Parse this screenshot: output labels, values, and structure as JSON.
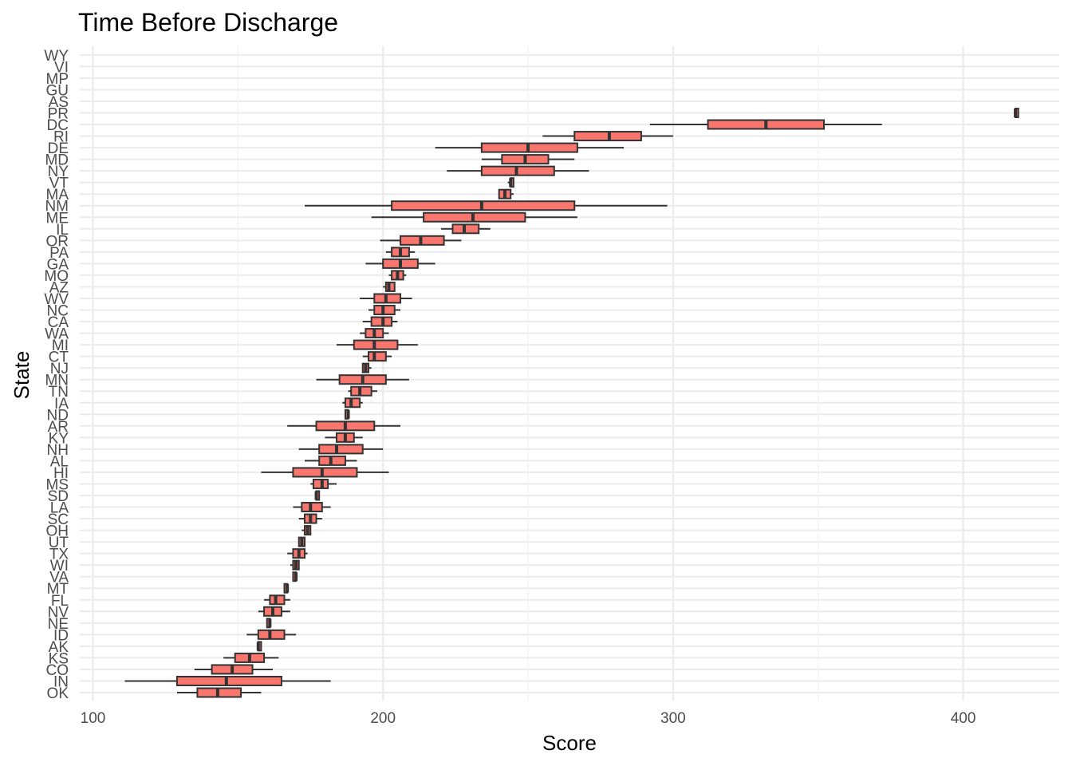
{
  "chart_data": {
    "type": "boxplot",
    "title": "Time Before Discharge",
    "xlabel": "Score",
    "ylabel": "State",
    "xlim": [
      96,
      431
    ],
    "x_ticks": [
      100,
      200,
      300,
      400
    ],
    "grid": true,
    "legend": "none",
    "colors": {
      "box_fill": "#F8766D",
      "outline": "#333333",
      "grid": "#EBEBEB",
      "text": "#4D4D4D",
      "title": "#000000"
    },
    "states": [
      "OK",
      "IN",
      "CO",
      "KS",
      "AK",
      "ID",
      "NE",
      "NV",
      "FL",
      "MT",
      "VA",
      "WI",
      "TX",
      "UT",
      "OH",
      "SC",
      "LA",
      "SD",
      "MS",
      "HI",
      "AL",
      "NH",
      "KY",
      "AR",
      "ND",
      "IA",
      "TN",
      "MN",
      "NJ",
      "CT",
      "MI",
      "WA",
      "CA",
      "NC",
      "WV",
      "AZ",
      "MO",
      "GA",
      "PA",
      "OR",
      "IL",
      "ME",
      "NM",
      "MA",
      "VT",
      "NY",
      "MD",
      "DE",
      "RI",
      "DC",
      "PR",
      "AS",
      "GU",
      "MP",
      "VI",
      "WY"
    ],
    "boxes": [
      {
        "state": "OK",
        "min": 129,
        "q1": 136,
        "median": 143,
        "q3": 151,
        "max": 158
      },
      {
        "state": "IN",
        "min": 111,
        "q1": 129,
        "median": 146,
        "q3": 165,
        "max": 182
      },
      {
        "state": "CO",
        "min": 135,
        "q1": 141,
        "median": 148,
        "q3": 155,
        "max": 162
      },
      {
        "state": "KS",
        "min": 145,
        "q1": 149,
        "median": 154,
        "q3": 159,
        "max": 164
      },
      {
        "state": "AK",
        "min": 157,
        "q1": 157,
        "median": 157,
        "q3": 158,
        "max": 158
      },
      {
        "state": "ID",
        "min": 153,
        "q1": 157,
        "median": 161,
        "q3": 166,
        "max": 170
      },
      {
        "state": "NE",
        "min": 160,
        "q1": 160,
        "median": 161,
        "q3": 161,
        "max": 161
      },
      {
        "state": "NV",
        "min": 157,
        "q1": 159,
        "median": 162,
        "q3": 165,
        "max": 168
      },
      {
        "state": "FL",
        "min": 159,
        "q1": 161,
        "median": 163,
        "q3": 166,
        "max": 168
      },
      {
        "state": "MT",
        "min": 166,
        "q1": 166,
        "median": 167,
        "q3": 167,
        "max": 167
      },
      {
        "state": "VA",
        "min": 169,
        "q1": 169,
        "median": 170,
        "q3": 170,
        "max": 170
      },
      {
        "state": "WI",
        "min": 168,
        "q1": 169,
        "median": 170,
        "q3": 171,
        "max": 171
      },
      {
        "state": "TX",
        "min": 167,
        "q1": 169,
        "median": 171,
        "q3": 173,
        "max": 174
      },
      {
        "state": "UT",
        "min": 171,
        "q1": 171,
        "median": 172,
        "q3": 173,
        "max": 173
      },
      {
        "state": "OH",
        "min": 172,
        "q1": 173,
        "median": 174,
        "q3": 175,
        "max": 175
      },
      {
        "state": "SC",
        "min": 171,
        "q1": 173,
        "median": 175,
        "q3": 177,
        "max": 179
      },
      {
        "state": "LA",
        "min": 169,
        "q1": 172,
        "median": 175,
        "q3": 179,
        "max": 182
      },
      {
        "state": "SD",
        "min": 177,
        "q1": 177,
        "median": 177,
        "q3": 178,
        "max": 178
      },
      {
        "state": "MS",
        "min": 175,
        "q1": 176,
        "median": 179,
        "q3": 181,
        "max": 184
      },
      {
        "state": "HI",
        "min": 158,
        "q1": 169,
        "median": 179,
        "q3": 191,
        "max": 202
      },
      {
        "state": "AL",
        "min": 173,
        "q1": 178,
        "median": 182,
        "q3": 187,
        "max": 191
      },
      {
        "state": "NH",
        "min": 171,
        "q1": 178,
        "median": 184,
        "q3": 193,
        "max": 200
      },
      {
        "state": "KY",
        "min": 180,
        "q1": 184,
        "median": 187,
        "q3": 190,
        "max": 193
      },
      {
        "state": "AR",
        "min": 167,
        "q1": 177,
        "median": 187,
        "q3": 197,
        "max": 206
      },
      {
        "state": "ND",
        "min": 187,
        "q1": 187,
        "median": 188,
        "q3": 188,
        "max": 188
      },
      {
        "state": "IA",
        "min": 186,
        "q1": 187,
        "median": 189,
        "q3": 192,
        "max": 193
      },
      {
        "state": "TN",
        "min": 188,
        "q1": 189,
        "median": 192,
        "q3": 196,
        "max": 198
      },
      {
        "state": "MN",
        "min": 177,
        "q1": 185,
        "median": 193,
        "q3": 201,
        "max": 209
      },
      {
        "state": "NJ",
        "min": 193,
        "q1": 193,
        "median": 194,
        "q3": 195,
        "max": 196
      },
      {
        "state": "CT",
        "min": 193,
        "q1": 195,
        "median": 197,
        "q3": 201,
        "max": 203
      },
      {
        "state": "MI",
        "min": 184,
        "q1": 190,
        "median": 197,
        "q3": 205,
        "max": 212
      },
      {
        "state": "WA",
        "min": 192,
        "q1": 194,
        "median": 197,
        "q3": 200,
        "max": 202
      },
      {
        "state": "CA",
        "min": 193,
        "q1": 196,
        "median": 200,
        "q3": 203,
        "max": 205
      },
      {
        "state": "NC",
        "min": 195,
        "q1": 197,
        "median": 200,
        "q3": 204,
        "max": 206
      },
      {
        "state": "WV",
        "min": 192,
        "q1": 197,
        "median": 201,
        "q3": 206,
        "max": 210
      },
      {
        "state": "AZ",
        "min": 200,
        "q1": 201,
        "median": 202,
        "q3": 204,
        "max": 204
      },
      {
        "state": "MO",
        "min": 202,
        "q1": 203,
        "median": 205,
        "q3": 207,
        "max": 208
      },
      {
        "state": "GA",
        "min": 194,
        "q1": 200,
        "median": 206,
        "q3": 212,
        "max": 218
      },
      {
        "state": "PA",
        "min": 201,
        "q1": 203,
        "median": 206,
        "q3": 209,
        "max": 211
      },
      {
        "state": "OR",
        "min": 199,
        "q1": 206,
        "median": 213,
        "q3": 221,
        "max": 227
      },
      {
        "state": "IL",
        "min": 220,
        "q1": 224,
        "median": 228,
        "q3": 233,
        "max": 237
      },
      {
        "state": "ME",
        "min": 196,
        "q1": 214,
        "median": 231,
        "q3": 249,
        "max": 267
      },
      {
        "state": "NM",
        "min": 173,
        "q1": 203,
        "median": 234,
        "q3": 266,
        "max": 298
      },
      {
        "state": "MA",
        "min": 240,
        "q1": 240,
        "median": 242,
        "q3": 244,
        "max": 245
      },
      {
        "state": "VT",
        "min": 243,
        "q1": 244,
        "median": 244,
        "q3": 245,
        "max": 245
      },
      {
        "state": "NY",
        "min": 222,
        "q1": 234,
        "median": 246,
        "q3": 259,
        "max": 271
      },
      {
        "state": "MD",
        "min": 234,
        "q1": 241,
        "median": 249,
        "q3": 257,
        "max": 266
      },
      {
        "state": "DE",
        "min": 218,
        "q1": 234,
        "median": 250,
        "q3": 267,
        "max": 283
      },
      {
        "state": "RI",
        "min": 255,
        "q1": 266,
        "median": 278,
        "q3": 289,
        "max": 300
      },
      {
        "state": "DC",
        "min": 292,
        "q1": 312,
        "median": 332,
        "q3": 352,
        "max": 372
      },
      {
        "state": "PR",
        "min": 418,
        "q1": 418,
        "median": 418,
        "q3": 419,
        "max": 419
      }
    ]
  }
}
